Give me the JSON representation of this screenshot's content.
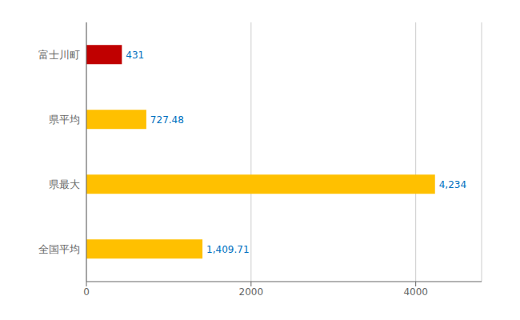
{
  "chart_data": {
    "type": "bar",
    "orientation": "horizontal",
    "categories": [
      "全国平均",
      "県最大",
      "県平均",
      "富士川町"
    ],
    "values": [
      1409.71,
      4234,
      727.48,
      431
    ],
    "value_labels": [
      "1,409.71",
      "4,234",
      "727.48",
      "431"
    ],
    "data_labels": true,
    "colors": [
      "#FFC000",
      "#FFC000",
      "#FFC000",
      "#C00000"
    ],
    "xlim": [
      0,
      4800
    ],
    "xticks": [
      0,
      2000,
      4000
    ],
    "grid": true
  }
}
